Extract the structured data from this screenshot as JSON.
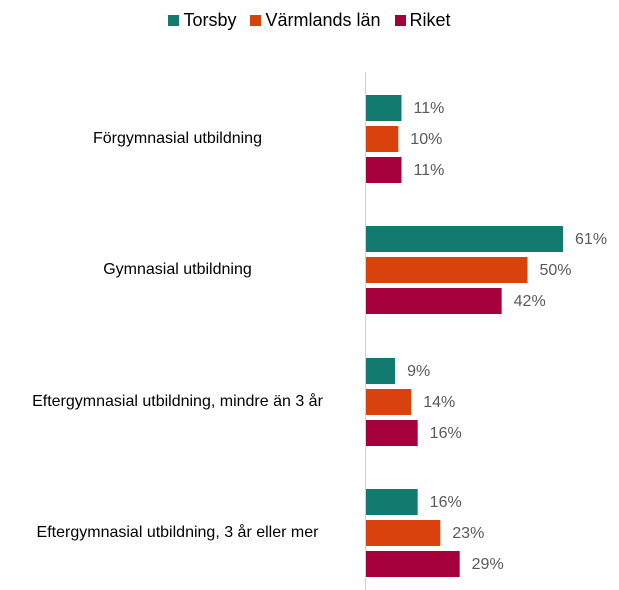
{
  "chart_data": {
    "type": "bar",
    "orientation": "horizontal",
    "categories": [
      "Förgymnasial utbildning",
      "Gymnasial utbildning",
      "Eftergymnasial utbildning, mindre än 3 år",
      "Eftergymnasial utbildning, 3 år eller mer"
    ],
    "series": [
      {
        "name": "Torsby",
        "color": "#127a6e",
        "values": [
          11,
          61,
          9,
          16
        ],
        "value_labels": [
          "11%",
          "61%",
          "9%",
          "16%"
        ]
      },
      {
        "name": "Värmlands län",
        "color": "#d9410d",
        "values": [
          10,
          50,
          14,
          23
        ],
        "value_labels": [
          "10%",
          "50%",
          "14%",
          "23%"
        ]
      },
      {
        "name": "Riket",
        "color": "#a5003c",
        "values": [
          11,
          42,
          16,
          29
        ],
        "value_labels": [
          "11%",
          "42%",
          "16%",
          "29%"
        ]
      }
    ],
    "legend": "top"
  }
}
